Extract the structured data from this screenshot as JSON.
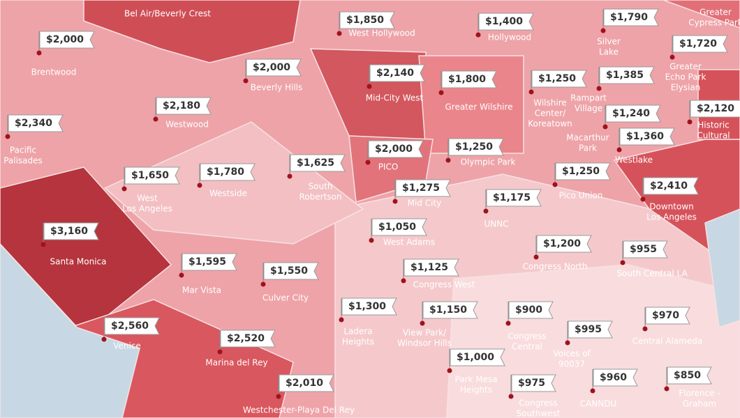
{
  "regions": [
    {
      "name": [
        "Bel Air/Beverly Crest"
      ]
    },
    {
      "price": "$2,000",
      "name": [
        "Brentwood"
      ]
    },
    {
      "price": "$1,850",
      "name": [
        "West Hollywood"
      ]
    },
    {
      "price": "$1,400",
      "name": [
        "Hollywood"
      ]
    },
    {
      "price": "$1,790",
      "name": [
        "Silver",
        "Lake"
      ]
    },
    {
      "name": [
        "Greater",
        "Cypress Park"
      ]
    },
    {
      "price": "$2,000",
      "name": [
        "Beverly Hills"
      ]
    },
    {
      "price": "$2,140",
      "name": [
        "Mid-City West"
      ]
    },
    {
      "price": "$1,720",
      "name": [
        "Greater",
        "Echo Park",
        "Elysian"
      ]
    },
    {
      "price": "$1,250",
      "name": [
        "Wilshire",
        "Center/",
        "Koreatown"
      ]
    },
    {
      "price": "$1,800",
      "name": [
        "Greater Wilshire"
      ]
    },
    {
      "price": "$1,385",
      "name": [
        "Rampart",
        "Village"
      ]
    },
    {
      "price": "$2,180",
      "name": [
        "Westwood"
      ]
    },
    {
      "price": "$2,340",
      "name": [
        "Pacific",
        "Palisades"
      ]
    },
    {
      "price": "$2,120",
      "name": [
        "Historic",
        "Cultural"
      ]
    },
    {
      "price": "$1,240",
      "name": [
        "Macarthur",
        "Park"
      ]
    },
    {
      "price": "$1,360",
      "name": [
        "Westlake"
      ]
    },
    {
      "price": "$1,250",
      "name": [
        "Olympic Park"
      ]
    },
    {
      "price": "$2,000",
      "name": [
        "PICO"
      ]
    },
    {
      "price": "$1,625",
      "name": [
        "South",
        "Robertson"
      ]
    },
    {
      "price": "$1,650",
      "name": [
        "West",
        "Los Angeles"
      ]
    },
    {
      "price": "$1,780",
      "name": [
        "Westside"
      ]
    },
    {
      "price": "$1,250",
      "name": [
        "Pico Union"
      ]
    },
    {
      "price": "$2,410",
      "name": [
        "Downtown",
        "Los Angeles"
      ]
    },
    {
      "price": "$1,275",
      "name": [
        "Mid City"
      ]
    },
    {
      "price": "$1,175",
      "name": [
        "UNNC"
      ]
    },
    {
      "price": "$3,160",
      "name": [
        "Santa Monica"
      ]
    },
    {
      "price": "$1,050",
      "name": [
        "West Adams"
      ]
    },
    {
      "price": "$1,200",
      "name": [
        "Congress North"
      ]
    },
    {
      "price": "$955",
      "name": [
        "South Central LA"
      ]
    },
    {
      "price": "$1,595",
      "name": [
        "Mar Vista"
      ]
    },
    {
      "price": "$1,550",
      "name": [
        "Culver City"
      ]
    },
    {
      "price": "$1,125",
      "name": [
        "Congress West"
      ]
    },
    {
      "price": "$1,300",
      "name": [
        "Ladera",
        "Heights"
      ]
    },
    {
      "price": "$1,150",
      "name": [
        "View Park/",
        "Windsor Hills"
      ]
    },
    {
      "price": "$900",
      "name": [
        "Congress",
        "Central"
      ]
    },
    {
      "price": "$970",
      "name": [
        "Central Alameda"
      ]
    },
    {
      "price": "$995",
      "name": [
        "Voices of",
        "90037"
      ]
    },
    {
      "price": "$2,560",
      "name": [
        "Venice"
      ]
    },
    {
      "price": "$2,520",
      "name": [
        "Marina del Rey"
      ]
    },
    {
      "price": "$1,000",
      "name": [
        "Park Mesa",
        "Heights"
      ]
    },
    {
      "price": "$2,010",
      "name": [
        "Westchester-Playa Del Rey"
      ]
    },
    {
      "price": "$975",
      "name": [
        "Congress",
        "Southwest"
      ]
    },
    {
      "price": "$960",
      "name": [
        "CANNDU"
      ]
    },
    {
      "price": "$850",
      "name": [
        "Florence -",
        "Graham"
      ]
    }
  ]
}
